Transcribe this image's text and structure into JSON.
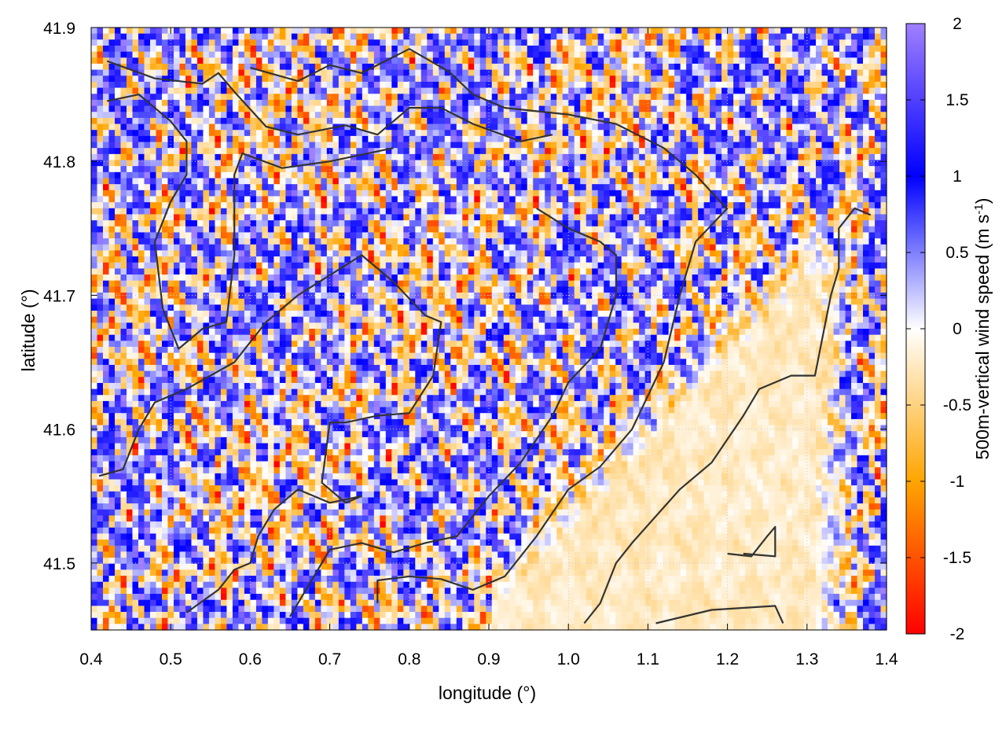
{
  "chart_data": {
    "type": "heatmap",
    "xlabel": "longitude (°)",
    "ylabel": "latitude (°)",
    "colorbar_label": "500m-vertical wind speed (m s",
    "colorbar_label_sup": "-1",
    "colorbar_label_tail": ")",
    "xlim": [
      0.4,
      1.4
    ],
    "ylim": [
      41.45,
      41.9
    ],
    "x_ticks": [
      "0.4",
      "0.5",
      "0.6",
      "0.7",
      "0.8",
      "0.9",
      "1.0",
      "1.1",
      "1.2",
      "1.3",
      "1.4"
    ],
    "x_tick_values": [
      0.4,
      0.5,
      0.6,
      0.7,
      0.8,
      0.9,
      1.0,
      1.1,
      1.2,
      1.3,
      1.4
    ],
    "y_ticks": [
      "41.5",
      "41.6",
      "41.7",
      "41.8",
      "41.9"
    ],
    "y_tick_values": [
      41.5,
      41.6,
      41.7,
      41.8,
      41.9
    ],
    "colorbar_range": [
      -2,
      2
    ],
    "colorbar_ticks": [
      "2",
      "1.5",
      "1",
      "0.5",
      "0",
      "-0.5",
      "-1",
      "-1.5",
      "-2"
    ],
    "colorbar_tick_values": [
      2,
      1.5,
      1,
      0.5,
      0,
      -0.5,
      -1,
      -1.5,
      -2
    ],
    "colormap": [
      {
        "value": -2,
        "color": "#ff0000"
      },
      {
        "value": -1,
        "color": "#ffa500"
      },
      {
        "value": 0,
        "color": "#ffffff"
      },
      {
        "value": 1,
        "color": "#0000ff"
      },
      {
        "value": 2,
        "color": "#a07fff"
      }
    ],
    "field_description_regions": {
      "turbulent_cells": "alternating updraft/downdraft cells of roughly ±1.5 m/s over most of the domain",
      "calm_region": "near-zero vertical speed over the south-east, roughly lon 0.9–1.35, lat 41.45–41.62"
    },
    "boundary_lines": [
      [
        [
          0.42,
          41.875
        ],
        [
          0.48,
          41.862
        ],
        [
          0.54,
          41.858
        ],
        [
          0.56,
          41.866
        ],
        [
          0.58,
          41.852
        ],
        [
          0.62,
          41.826
        ],
        [
          0.66,
          41.82
        ],
        [
          0.72,
          41.827
        ],
        [
          0.76,
          41.82
        ],
        [
          0.8,
          41.84
        ],
        [
          0.84,
          41.84
        ],
        [
          0.88,
          41.828
        ],
        [
          0.94,
          41.815
        ],
        [
          0.98,
          41.82
        ]
      ],
      [
        [
          0.6,
          41.87
        ],
        [
          0.66,
          41.86
        ],
        [
          0.7,
          41.872
        ],
        [
          0.74,
          41.866
        ],
        [
          0.8,
          41.884
        ],
        [
          0.85,
          41.867
        ],
        [
          0.88,
          41.85
        ],
        [
          0.92,
          41.84
        ],
        [
          1.0,
          41.835
        ],
        [
          1.06,
          41.828
        ],
        [
          1.12,
          41.81
        ],
        [
          1.16,
          41.79
        ],
        [
          1.2,
          41.764
        ]
      ],
      [
        [
          0.42,
          41.845
        ],
        [
          0.46,
          41.85
        ],
        [
          0.5,
          41.83
        ],
        [
          0.52,
          41.815
        ],
        [
          0.52,
          41.79
        ],
        [
          0.5,
          41.77
        ],
        [
          0.48,
          41.74
        ],
        [
          0.49,
          41.69
        ],
        [
          0.51,
          41.66
        ],
        [
          0.54,
          41.675
        ],
        [
          0.57,
          41.68
        ],
        [
          0.58,
          41.73
        ],
        [
          0.58,
          41.79
        ],
        [
          0.59,
          41.806
        ],
        [
          0.64,
          41.795
        ],
        [
          0.7,
          41.8
        ],
        [
          0.78,
          41.81
        ]
      ],
      [
        [
          0.41,
          41.565
        ],
        [
          0.44,
          41.57
        ],
        [
          0.46,
          41.6
        ],
        [
          0.48,
          41.62
        ],
        [
          0.52,
          41.63
        ],
        [
          0.58,
          41.65
        ],
        [
          0.62,
          41.68
        ],
        [
          0.66,
          41.7
        ],
        [
          0.7,
          41.715
        ],
        [
          0.74,
          41.73
        ],
        [
          0.78,
          41.71
        ],
        [
          0.82,
          41.685
        ],
        [
          0.84,
          41.68
        ],
        [
          0.83,
          41.64
        ],
        [
          0.8,
          41.612
        ],
        [
          0.76,
          41.61
        ],
        [
          0.72,
          41.605
        ],
        [
          0.7,
          41.605
        ],
        [
          0.69,
          41.56
        ],
        [
          0.72,
          41.545
        ],
        [
          0.74,
          41.55
        ]
      ],
      [
        [
          0.52,
          41.463
        ],
        [
          0.56,
          41.48
        ],
        [
          0.58,
          41.495
        ],
        [
          0.6,
          41.5
        ],
        [
          0.61,
          41.52
        ],
        [
          0.63,
          41.54
        ],
        [
          0.66,
          41.555
        ],
        [
          0.7,
          41.545
        ],
        [
          0.74,
          41.55
        ]
      ],
      [
        [
          0.65,
          41.46
        ],
        [
          0.68,
          41.49
        ],
        [
          0.7,
          41.51
        ],
        [
          0.74,
          41.515
        ],
        [
          0.78,
          41.508
        ],
        [
          0.82,
          41.515
        ],
        [
          0.86,
          41.52
        ],
        [
          0.9,
          41.55
        ],
        [
          0.94,
          41.575
        ],
        [
          0.98,
          41.61
        ],
        [
          1.0,
          41.635
        ],
        [
          1.04,
          41.66
        ],
        [
          1.06,
          41.7
        ],
        [
          1.06,
          41.73
        ],
        [
          1.04,
          41.74
        ],
        [
          1.0,
          41.75
        ],
        [
          0.96,
          41.765
        ]
      ],
      [
        [
          0.76,
          41.47
        ],
        [
          0.76,
          41.487
        ],
        [
          0.8,
          41.49
        ],
        [
          0.84,
          41.488
        ],
        [
          0.88,
          41.48
        ],
        [
          0.92,
          41.49
        ],
        [
          0.96,
          41.52
        ],
        [
          1.0,
          41.555
        ],
        [
          1.04,
          41.572
        ],
        [
          1.08,
          41.6
        ],
        [
          1.12,
          41.65
        ],
        [
          1.14,
          41.7
        ],
        [
          1.16,
          41.74
        ],
        [
          1.2,
          41.765
        ]
      ],
      [
        [
          1.02,
          41.455
        ],
        [
          1.04,
          41.47
        ],
        [
          1.06,
          41.5
        ],
        [
          1.08,
          41.515
        ],
        [
          1.14,
          41.555
        ],
        [
          1.18,
          41.575
        ],
        [
          1.22,
          41.61
        ],
        [
          1.24,
          41.63
        ],
        [
          1.28,
          41.64
        ],
        [
          1.31,
          41.64
        ],
        [
          1.32,
          41.67
        ],
        [
          1.33,
          41.7
        ],
        [
          1.34,
          41.72
        ],
        [
          1.34,
          41.75
        ],
        [
          1.36,
          41.765
        ],
        [
          1.38,
          41.76
        ]
      ],
      [
        [
          1.11,
          41.455
        ],
        [
          1.18,
          41.465
        ],
        [
          1.26,
          41.468
        ],
        [
          1.27,
          41.455
        ]
      ],
      [
        [
          1.2,
          41.507
        ],
        [
          1.23,
          41.505
        ],
        [
          1.25,
          41.52
        ],
        [
          1.26,
          41.527
        ],
        [
          1.26,
          41.505
        ],
        [
          1.22,
          41.507
        ]
      ]
    ]
  }
}
